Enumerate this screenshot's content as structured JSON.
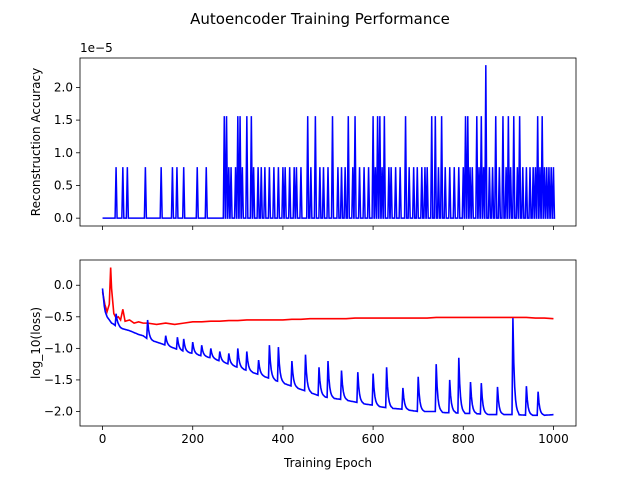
{
  "figure": {
    "title": "Autoencoder Training Performance"
  },
  "chart_data": [
    {
      "type": "line",
      "ylabel": "Reconstruction Accuracy",
      "xlabel": "",
      "offset_label": "1e−5",
      "xlim": [
        -50,
        1050
      ],
      "ylim": [
        -0.12,
        2.45
      ],
      "xticks": [
        0,
        200,
        400,
        600,
        800,
        1000
      ],
      "xtick_labels": [
        "",
        "",
        "",
        "",
        "",
        ""
      ],
      "yticks": [
        0.0,
        0.5,
        1.0,
        1.5,
        2.0
      ],
      "ytick_labels": [
        "0.0",
        "0.5",
        "1.0",
        "1.5",
        "2.0"
      ],
      "grid": false,
      "series": [
        {
          "color": "#0000ff",
          "description": "sparse spikes at 7.8e-6 multiples",
          "x": [
            0,
            30,
            45,
            55,
            95,
            130,
            155,
            165,
            180,
            210,
            230,
            270,
            275,
            280,
            285,
            295,
            300,
            305,
            310,
            320,
            330,
            335,
            345,
            352,
            360,
            370,
            380,
            390,
            400,
            405,
            415,
            425,
            430,
            440,
            455,
            462,
            472,
            482,
            490,
            500,
            510,
            522,
            530,
            538,
            545,
            555,
            560,
            570,
            580,
            590,
            600,
            605,
            610,
            615,
            620,
            625,
            635,
            640,
            650,
            660,
            672,
            680,
            690,
            698,
            708,
            715,
            720,
            730,
            738,
            745,
            752,
            760,
            770,
            780,
            790,
            800,
            805,
            810,
            815,
            820,
            830,
            835,
            840,
            845,
            850,
            858,
            865,
            872,
            880,
            888,
            895,
            900,
            905,
            912,
            920,
            925,
            932,
            940,
            948,
            955,
            960,
            965,
            970,
            975,
            980,
            985,
            990,
            995,
            1000
          ],
          "y": [
            0,
            0.78,
            0.78,
            0.78,
            0.78,
            0.78,
            0.78,
            0.78,
            0.78,
            0.78,
            0.78,
            1.56,
            1.56,
            0.78,
            0.78,
            0.78,
            1.56,
            1.56,
            0.78,
            1.56,
            1.56,
            0.78,
            0.78,
            0.78,
            0.78,
            0.78,
            0.78,
            0.78,
            0.78,
            0.78,
            0.78,
            0.78,
            0.78,
            0.78,
            1.56,
            0.78,
            1.56,
            0.78,
            0.78,
            0.78,
            1.56,
            0.78,
            0.78,
            0.78,
            1.56,
            0.78,
            1.56,
            0.78,
            0.78,
            0.78,
            1.56,
            0.78,
            1.56,
            1.56,
            0.78,
            1.56,
            0.78,
            0.78,
            0.78,
            0.78,
            1.56,
            0.78,
            0.78,
            0.78,
            0.78,
            0.78,
            0.78,
            1.56,
            1.56,
            0.78,
            1.56,
            0.78,
            0.78,
            0.78,
            0.78,
            0.78,
            1.56,
            1.56,
            0.78,
            0.78,
            1.56,
            0.78,
            1.56,
            0.78,
            2.34,
            0.78,
            0.78,
            1.56,
            0.78,
            1.56,
            0.78,
            1.56,
            0.78,
            1.56,
            0.78,
            1.56,
            0.78,
            0.78,
            0.78,
            0.78,
            0.78,
            1.56,
            0.78,
            1.56,
            0.78,
            0.78,
            0.78,
            0.78,
            0.78
          ]
        }
      ]
    },
    {
      "type": "line",
      "ylabel": "log_10(loss)",
      "xlabel": "Training Epoch",
      "xlim": [
        -50,
        1050
      ],
      "ylim": [
        -2.23,
        0.4
      ],
      "xticks": [
        0,
        200,
        400,
        600,
        800,
        1000
      ],
      "xtick_labels": [
        "0",
        "200",
        "400",
        "600",
        "800",
        "1000"
      ],
      "yticks": [
        0.0,
        -0.5,
        -1.0,
        -1.5,
        -2.0
      ],
      "ytick_labels": [
        "0.0",
        "−0.5",
        "−1.0",
        "−1.5",
        "−2.0"
      ],
      "grid": false,
      "series": [
        {
          "color": "#ff0000",
          "x": [
            0,
            5,
            10,
            15,
            18,
            20,
            25,
            30,
            35,
            40,
            45,
            50,
            60,
            70,
            80,
            90,
            100,
            120,
            140,
            160,
            180,
            200,
            220,
            240,
            260,
            280,
            300,
            320,
            340,
            360,
            380,
            400,
            420,
            440,
            460,
            480,
            500,
            520,
            540,
            560,
            580,
            600,
            620,
            640,
            660,
            680,
            700,
            720,
            740,
            760,
            780,
            800,
            820,
            840,
            860,
            880,
            900,
            920,
            940,
            960,
            980,
            1000
          ],
          "y": [
            -0.1,
            -0.3,
            -0.42,
            -0.3,
            0.28,
            -0.05,
            -0.45,
            -0.52,
            -0.5,
            -0.55,
            -0.38,
            -0.57,
            -0.55,
            -0.6,
            -0.58,
            -0.6,
            -0.6,
            -0.62,
            -0.6,
            -0.62,
            -0.6,
            -0.58,
            -0.58,
            -0.57,
            -0.57,
            -0.56,
            -0.56,
            -0.55,
            -0.55,
            -0.55,
            -0.55,
            -0.55,
            -0.54,
            -0.54,
            -0.53,
            -0.53,
            -0.53,
            -0.53,
            -0.53,
            -0.52,
            -0.52,
            -0.52,
            -0.52,
            -0.52,
            -0.52,
            -0.52,
            -0.52,
            -0.52,
            -0.51,
            -0.51,
            -0.51,
            -0.51,
            -0.51,
            -0.51,
            -0.51,
            -0.51,
            -0.51,
            -0.51,
            -0.51,
            -0.52,
            -0.52,
            -0.53
          ]
        },
        {
          "color": "#0000ff",
          "x": [
            0,
            5,
            10,
            15,
            20,
            25,
            30,
            35,
            40,
            50,
            60,
            70,
            80,
            90,
            100,
            110,
            120,
            140,
            160,
            180,
            200,
            220,
            240,
            260,
            280,
            300,
            320,
            340,
            360,
            380,
            400,
            420,
            440,
            460,
            480,
            500,
            520,
            540,
            560,
            580,
            600,
            620,
            640,
            660,
            680,
            700,
            720,
            740,
            760,
            780,
            800,
            820,
            840,
            860,
            880,
            900,
            920,
            940,
            960,
            980,
            1000
          ],
          "y": [
            -0.05,
            -0.4,
            -0.5,
            -0.55,
            -0.6,
            -0.62,
            -0.65,
            -0.65,
            -0.68,
            -0.7,
            -0.72,
            -0.75,
            -0.78,
            -0.8,
            -0.85,
            -0.88,
            -0.9,
            -0.95,
            -1.0,
            -1.05,
            -1.08,
            -1.12,
            -1.15,
            -1.2,
            -1.25,
            -1.3,
            -1.35,
            -1.4,
            -1.45,
            -1.5,
            -1.55,
            -1.6,
            -1.65,
            -1.7,
            -1.75,
            -1.78,
            -1.8,
            -1.82,
            -1.85,
            -1.88,
            -1.9,
            -1.93,
            -1.95,
            -1.96,
            -1.98,
            -2.0,
            -2.0,
            -2.0,
            -2.02,
            -2.02,
            -2.03,
            -2.03,
            -2.04,
            -2.05,
            -2.05,
            -2.05,
            -2.05,
            -2.06,
            -2.06,
            -2.06,
            -2.05
          ]
        }
      ],
      "blue_spikes": {
        "description": "periodic spikes in blue loss curve",
        "epochs": [
          30,
          100,
          140,
          165,
          180,
          200,
          220,
          240,
          260,
          280,
          300,
          320,
          345,
          370,
          390,
          420,
          450,
          480,
          500,
          530,
          565,
          600,
          630,
          665,
          700,
          740,
          770,
          790,
          815,
          840,
          875,
          910,
          940,
          965
        ],
        "peaks": [
          -0.45,
          -0.55,
          -0.8,
          -0.75,
          -0.85,
          -0.9,
          -0.95,
          -1.0,
          -1.05,
          -1.08,
          -1.0,
          -1.05,
          -1.1,
          -0.95,
          -0.98,
          -1.2,
          -1.1,
          -1.3,
          -1.2,
          -1.35,
          -1.2,
          -1.4,
          -1.3,
          -1.5,
          -1.45,
          -1.25,
          -1.5,
          -1.15,
          -1.35,
          -1.55,
          -1.45,
          -0.52,
          -1.6,
          -1.55
        ]
      }
    }
  ]
}
